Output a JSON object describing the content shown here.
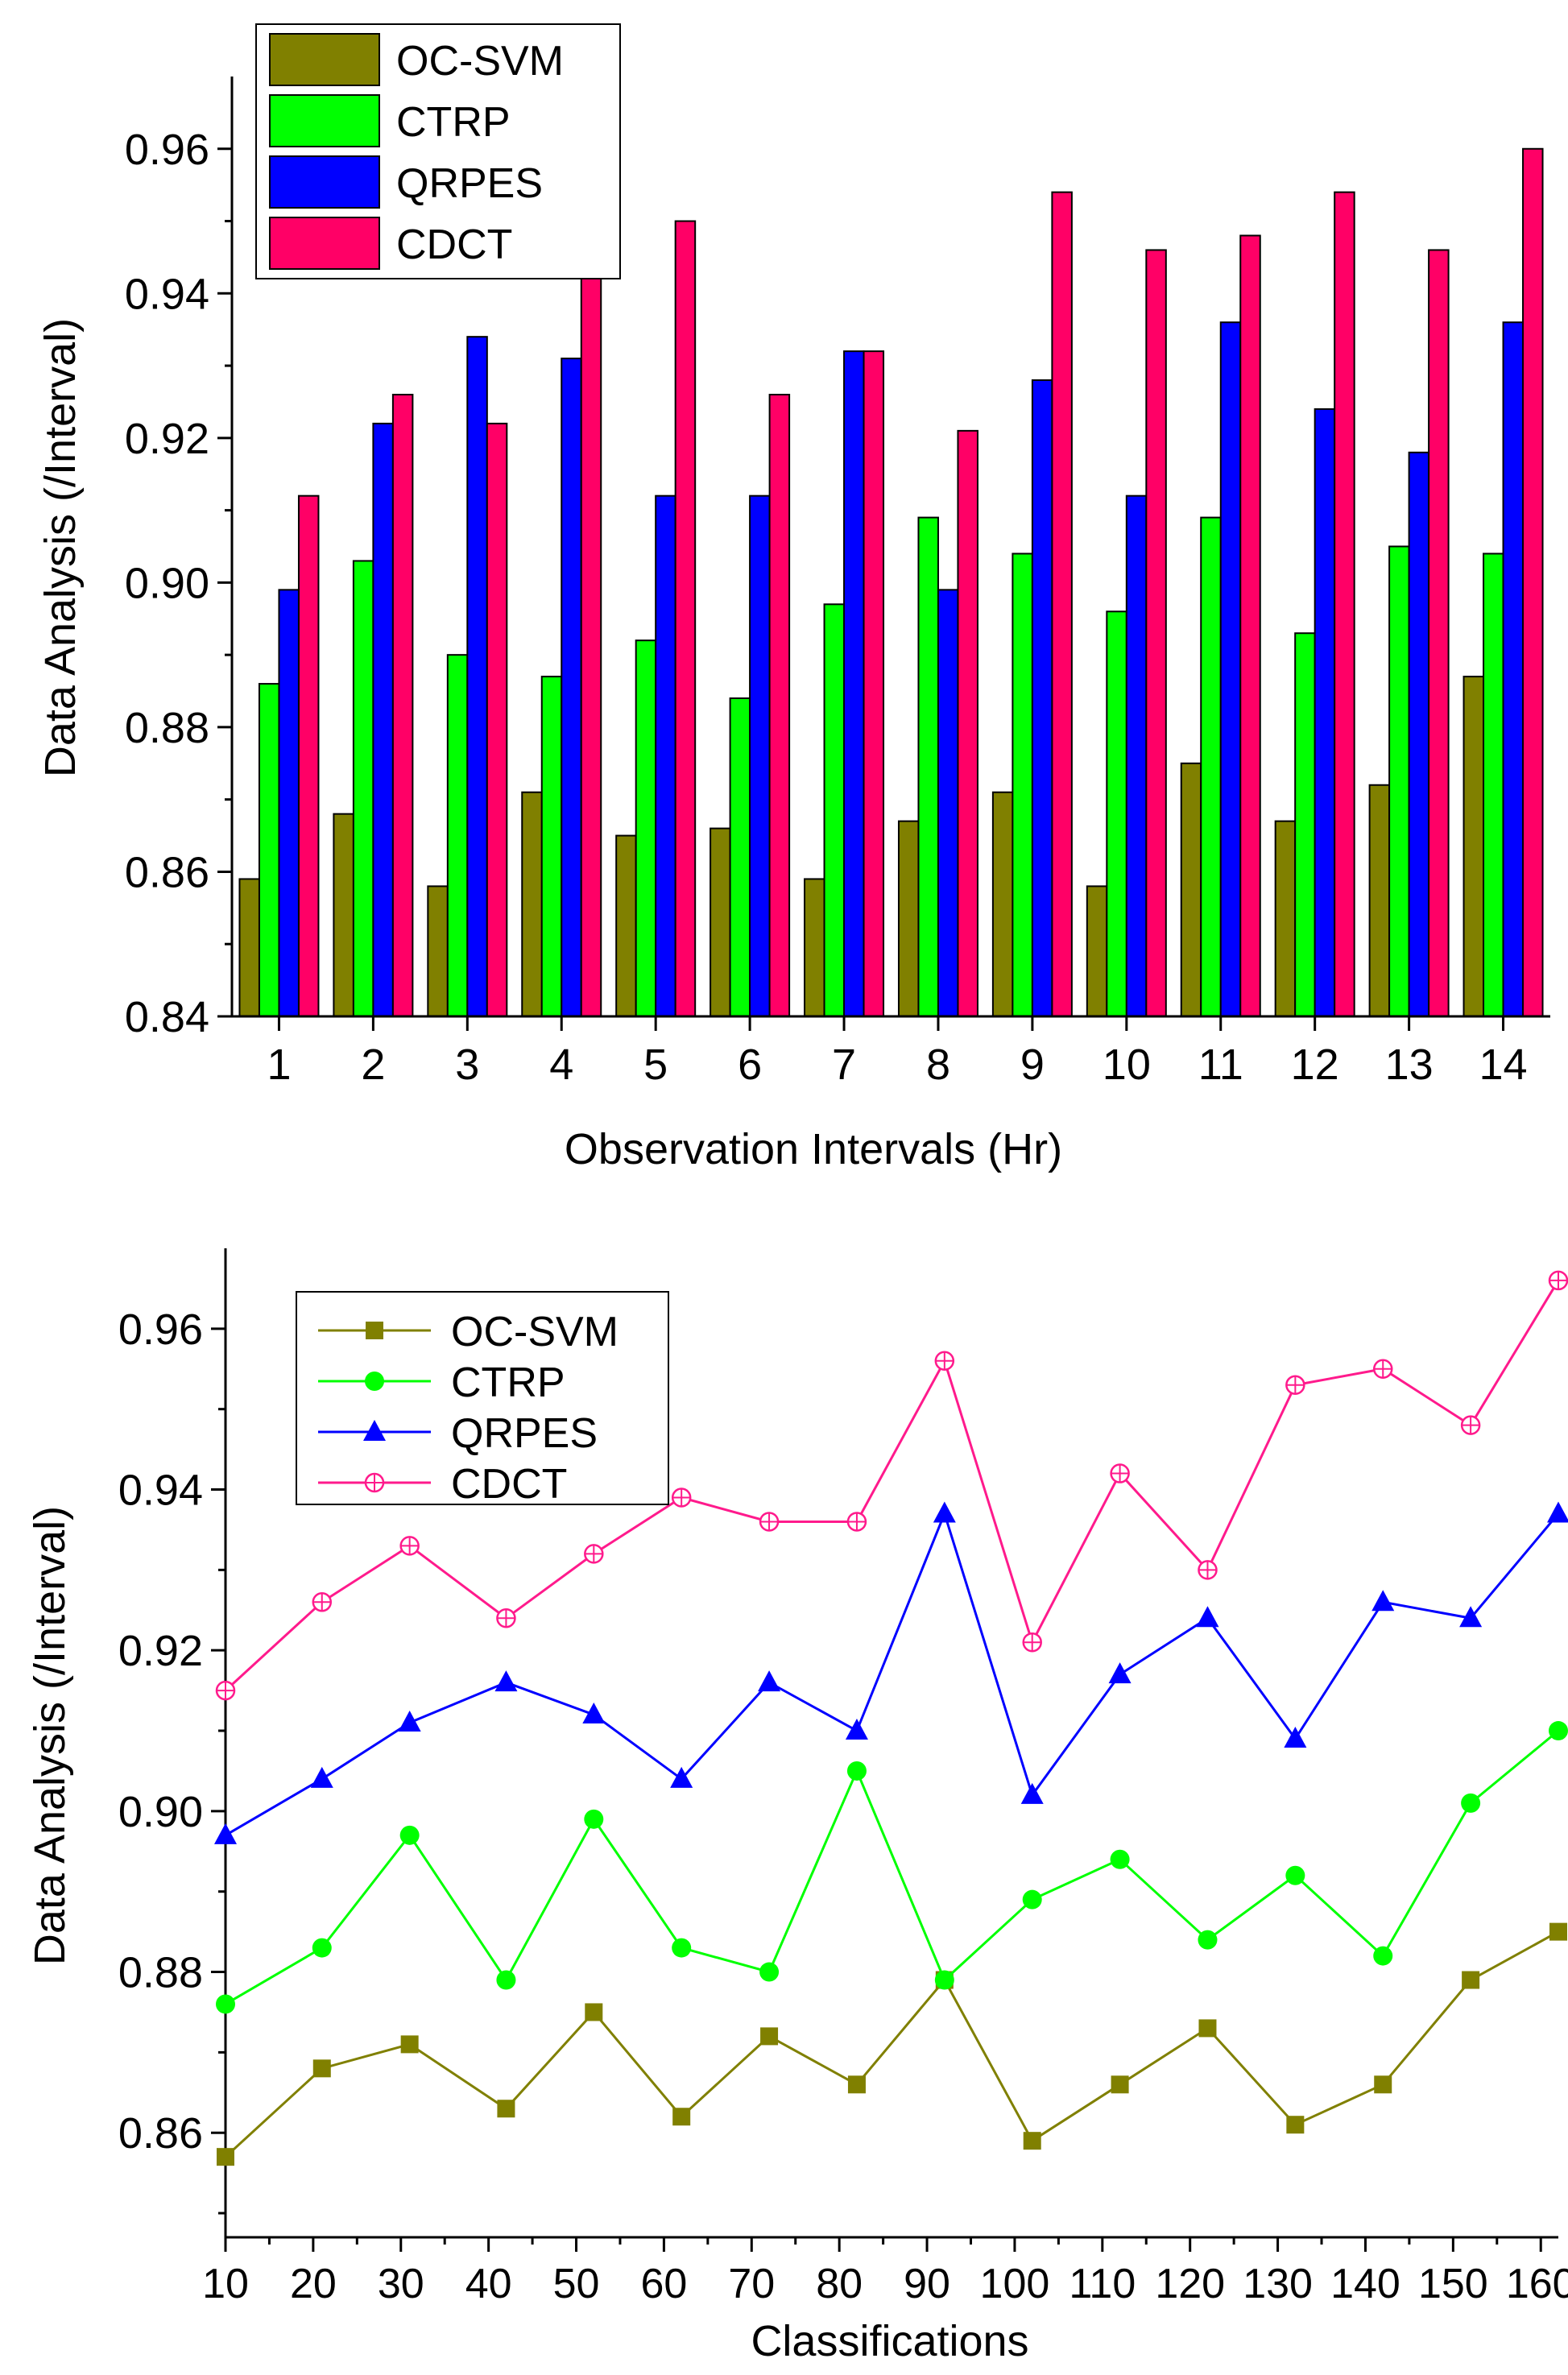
{
  "chart_data": [
    {
      "type": "bar",
      "xlabel": "Observation Intervals (Hr)",
      "ylabel": "Data Analysis (/Interval)",
      "ylim": [
        0.84,
        0.97
      ],
      "yticks": [
        "0.84",
        "0.86",
        "0.88",
        "0.90",
        "0.92",
        "0.94",
        "0.96"
      ],
      "categories": [
        "1",
        "2",
        "3",
        "4",
        "5",
        "6",
        "7",
        "8",
        "9",
        "10",
        "11",
        "12",
        "13",
        "14"
      ],
      "legend_position": "top-left",
      "series": [
        {
          "name": "OC-SVM",
          "color": "#808000",
          "values": [
            0.859,
            0.868,
            0.858,
            0.871,
            0.865,
            0.866,
            0.859,
            0.867,
            0.871,
            0.858,
            0.875,
            0.867,
            0.872,
            0.887
          ]
        },
        {
          "name": "CTRP",
          "color": "#00ff00",
          "values": [
            0.886,
            0.903,
            0.89,
            0.887,
            0.892,
            0.884,
            0.897,
            0.909,
            0.904,
            0.896,
            0.909,
            0.893,
            0.905,
            0.904
          ]
        },
        {
          "name": "QRPES",
          "color": "#0000ff",
          "values": [
            0.899,
            0.922,
            0.934,
            0.931,
            0.912,
            0.912,
            0.932,
            0.899,
            0.928,
            0.912,
            0.936,
            0.924,
            0.918,
            0.936
          ]
        },
        {
          "name": "CDCT",
          "color": "#ff0066",
          "values": [
            0.912,
            0.926,
            0.922,
            0.947,
            0.95,
            0.926,
            0.932,
            0.921,
            0.954,
            0.946,
            0.948,
            0.954,
            0.946,
            0.96
          ]
        }
      ]
    },
    {
      "type": "line",
      "xlabel": "Classifications",
      "ylabel": "Data Analysis (/Interval)",
      "xlim": [
        10,
        162
      ],
      "ylim": [
        0.847,
        0.97
      ],
      "xticks": [
        10,
        20,
        30,
        40,
        50,
        60,
        70,
        80,
        90,
        100,
        110,
        120,
        130,
        140,
        150,
        160
      ],
      "yticks": [
        "0.86",
        "0.88",
        "0.90",
        "0.92",
        "0.94",
        "0.96"
      ],
      "x": [
        10,
        21,
        31,
        42,
        52,
        62,
        72,
        82,
        92,
        102,
        112,
        122,
        132,
        142,
        152,
        162
      ],
      "legend_position": "top-left",
      "series": [
        {
          "name": "OC-SVM",
          "color": "#808000",
          "marker": "square",
          "values": [
            0.857,
            0.868,
            0.871,
            0.863,
            0.875,
            0.862,
            0.872,
            0.866,
            0.879,
            0.859,
            0.866,
            0.873,
            0.861,
            0.866,
            0.879,
            0.885
          ]
        },
        {
          "name": "CTRP",
          "color": "#00ff00",
          "marker": "circle",
          "values": [
            0.876,
            0.883,
            0.897,
            0.879,
            0.899,
            0.883,
            0.88,
            0.905,
            0.879,
            0.889,
            0.894,
            0.884,
            0.892,
            0.882,
            0.901,
            0.91
          ]
        },
        {
          "name": "QRPES",
          "color": "#0000ff",
          "marker": "triangle",
          "values": [
            0.897,
            0.904,
            0.911,
            0.916,
            0.912,
            0.904,
            0.916,
            0.91,
            0.937,
            0.902,
            0.917,
            0.924,
            0.909,
            0.926,
            0.924,
            0.937
          ]
        },
        {
          "name": "CDCT",
          "color": "#ff1a8c",
          "marker": "circle-plus",
          "values": [
            0.915,
            0.926,
            0.933,
            0.924,
            0.932,
            0.939,
            0.936,
            0.936,
            0.956,
            0.921,
            0.942,
            0.93,
            0.953,
            0.955,
            0.948,
            0.966
          ]
        }
      ]
    }
  ]
}
